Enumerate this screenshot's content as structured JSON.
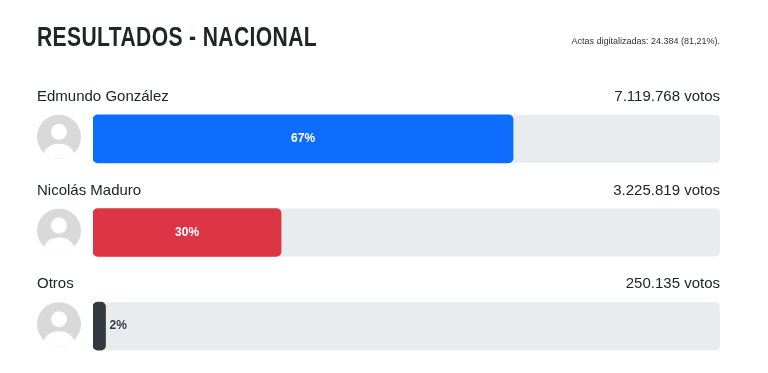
{
  "chart_data": {
    "type": "bar",
    "title": "RESULTADOS - NACIONAL",
    "subtitle": "Actas digitalizadas: 24.384 (81,21%).",
    "orientation": "horizontal",
    "categories": [
      "Edmundo González",
      "Nicolás Maduro",
      "Otros"
    ],
    "values": [
      67,
      30,
      2
    ],
    "value_labels": [
      "67%",
      "30%",
      "2%"
    ],
    "vote_labels": [
      "7.119.768 votos",
      "3.225.819 votos",
      "250.135 votos"
    ],
    "colors": [
      "#0d6efd",
      "#dc3545",
      "#343a40"
    ],
    "xlim": [
      0,
      100
    ],
    "grid": false,
    "tick_labels": false,
    "data_labels": true
  }
}
